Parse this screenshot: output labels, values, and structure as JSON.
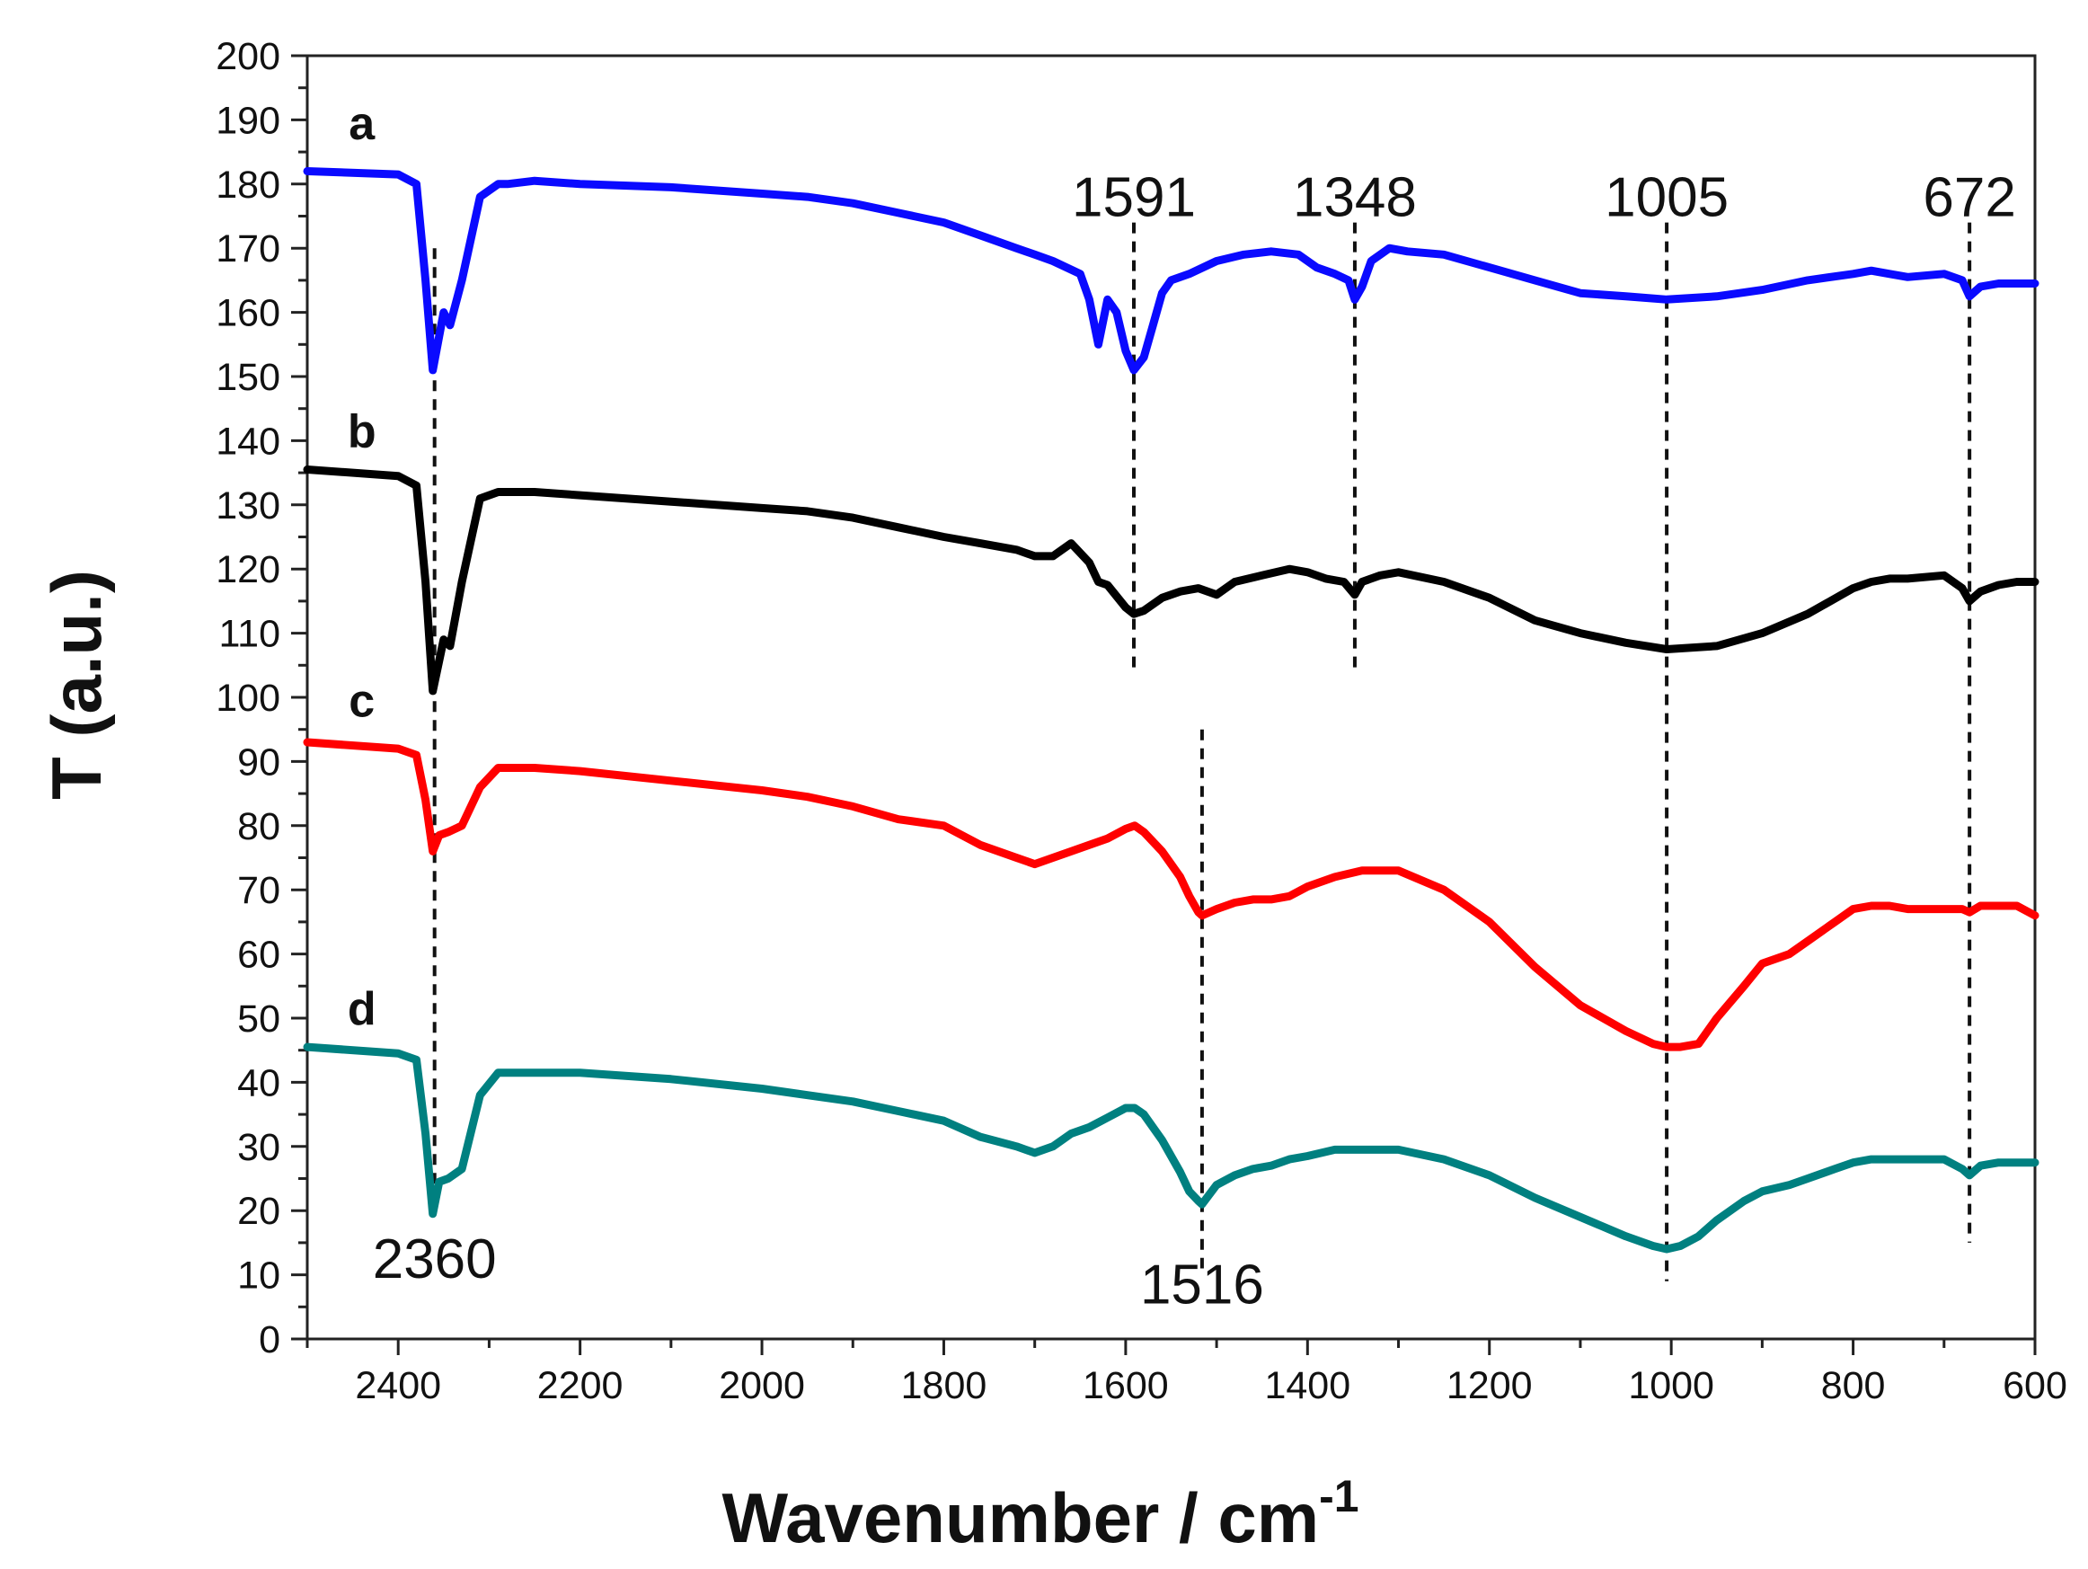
{
  "chart_data": {
    "type": "line",
    "title": "",
    "xlabel": "Wavenumber / cm",
    "xlabel_superscript": "-1",
    "ylabel": "T (a.u.)",
    "xlim": [
      2500,
      600
    ],
    "ylim": [
      0,
      200
    ],
    "x_ticks": [
      2400,
      2200,
      2000,
      1800,
      1600,
      1400,
      1200,
      1000,
      800,
      600
    ],
    "y_ticks": [
      0,
      10,
      20,
      30,
      40,
      50,
      60,
      70,
      80,
      90,
      100,
      110,
      120,
      130,
      140,
      150,
      160,
      170,
      180,
      190,
      200
    ],
    "series": [
      {
        "name": "a",
        "color": "#0a0aff",
        "x": [
          2500,
          2400,
          2380,
          2370,
          2362,
          2350,
          2343,
          2330,
          2310,
          2290,
          2280,
          2250,
          2200,
          2100,
          2000,
          1950,
          1900,
          1850,
          1800,
          1760,
          1720,
          1700,
          1680,
          1650,
          1640,
          1630,
          1620,
          1610,
          1600,
          1591,
          1580,
          1570,
          1560,
          1550,
          1530,
          1500,
          1470,
          1440,
          1410,
          1390,
          1370,
          1355,
          1348,
          1340,
          1330,
          1310,
          1290,
          1250,
          1200,
          1150,
          1100,
          1050,
          1005,
          950,
          900,
          850,
          800,
          780,
          760,
          740,
          700,
          680,
          672,
          660,
          640,
          620,
          600
        ],
        "y": [
          182,
          181.5,
          180,
          165,
          151,
          160,
          158,
          165,
          178,
          180,
          180,
          180.5,
          180,
          179.5,
          178.5,
          178,
          177,
          175.5,
          174,
          172,
          170,
          169,
          168,
          166,
          162,
          155,
          162,
          160,
          154,
          151,
          153,
          158,
          163,
          165,
          166,
          168,
          169,
          169.5,
          169,
          167,
          166,
          165,
          162,
          164,
          168,
          170,
          169.5,
          169,
          167,
          165,
          163,
          162.5,
          162,
          162.5,
          163.5,
          165,
          166,
          166.5,
          166,
          165.5,
          166,
          165,
          162.5,
          164,
          164.5,
          164.5,
          164.5
        ]
      },
      {
        "name": "b",
        "color": "#000000",
        "x": [
          2500,
          2400,
          2380,
          2370,
          2362,
          2350,
          2343,
          2330,
          2310,
          2290,
          2280,
          2250,
          2200,
          2100,
          2000,
          1950,
          1900,
          1850,
          1800,
          1760,
          1720,
          1700,
          1680,
          1660,
          1640,
          1630,
          1620,
          1600,
          1591,
          1580,
          1560,
          1540,
          1520,
          1500,
          1480,
          1450,
          1420,
          1400,
          1380,
          1360,
          1348,
          1340,
          1320,
          1300,
          1250,
          1200,
          1150,
          1100,
          1050,
          1005,
          950,
          900,
          850,
          800,
          780,
          760,
          740,
          700,
          680,
          672,
          660,
          640,
          620,
          600
        ],
        "y": [
          135.5,
          134.5,
          133,
          118,
          101,
          109,
          108,
          118,
          131,
          132,
          132,
          132,
          131.5,
          130.5,
          129.5,
          129,
          128,
          126.5,
          125,
          124,
          123,
          122,
          122,
          124,
          121,
          118,
          117.5,
          114,
          113,
          113.5,
          115.5,
          116.5,
          117,
          116,
          118,
          119,
          120,
          119.5,
          118.5,
          118,
          116,
          118,
          119,
          119.5,
          118,
          115.5,
          112,
          110,
          108.5,
          107.5,
          108,
          110,
          113,
          117,
          118,
          118.5,
          118.5,
          119,
          117,
          115,
          116.5,
          117.5,
          118,
          118
        ]
      },
      {
        "name": "c",
        "color": "#ff0000",
        "x": [
          2500,
          2400,
          2380,
          2370,
          2362,
          2355,
          2345,
          2330,
          2310,
          2290,
          2280,
          2250,
          2200,
          2100,
          2000,
          1950,
          1900,
          1850,
          1800,
          1760,
          1720,
          1700,
          1680,
          1660,
          1640,
          1620,
          1600,
          1590,
          1580,
          1560,
          1540,
          1530,
          1520,
          1516,
          1500,
          1480,
          1460,
          1440,
          1420,
          1400,
          1370,
          1340,
          1300,
          1250,
          1200,
          1150,
          1100,
          1050,
          1020,
          1005,
          990,
          970,
          950,
          920,
          900,
          870,
          850,
          820,
          800,
          780,
          760,
          740,
          700,
          680,
          672,
          660,
          640,
          620,
          600
        ],
        "y": [
          93,
          92,
          91,
          84,
          76,
          78.5,
          79,
          80,
          86,
          89,
          89,
          89,
          88.5,
          87,
          85.5,
          84.5,
          83,
          81,
          80,
          77,
          75,
          74,
          75,
          76,
          77,
          78,
          79.5,
          80,
          79,
          76,
          72,
          69,
          66.5,
          66,
          67,
          68,
          68.5,
          68.5,
          69,
          70.5,
          72,
          73,
          73,
          70,
          65,
          58,
          52,
          48,
          46,
          45.5,
          45.5,
          46,
          50,
          55,
          58.5,
          60,
          62,
          65,
          67,
          67.5,
          67.5,
          67,
          67,
          67,
          66.5,
          67.5,
          67.5,
          67.5,
          66
        ]
      },
      {
        "name": "d",
        "color": "#008080",
        "x": [
          2500,
          2400,
          2380,
          2370,
          2362,
          2355,
          2345,
          2330,
          2310,
          2290,
          2280,
          2250,
          2200,
          2100,
          2000,
          1950,
          1900,
          1850,
          1800,
          1760,
          1720,
          1700,
          1680,
          1660,
          1640,
          1620,
          1600,
          1590,
          1580,
          1560,
          1540,
          1530,
          1520,
          1516,
          1500,
          1480,
          1460,
          1440,
          1420,
          1400,
          1370,
          1340,
          1300,
          1250,
          1200,
          1150,
          1100,
          1050,
          1020,
          1005,
          990,
          970,
          950,
          920,
          900,
          870,
          850,
          820,
          800,
          780,
          760,
          740,
          700,
          680,
          672,
          660,
          640,
          620,
          600
        ],
        "y": [
          45.5,
          44.5,
          43.5,
          32,
          19.5,
          24.5,
          25,
          26.5,
          38,
          41.5,
          41.5,
          41.5,
          41.5,
          40.5,
          39,
          38,
          37,
          35.5,
          34,
          31.5,
          30,
          29,
          30,
          32,
          33,
          34.5,
          36,
          36,
          35,
          31,
          26,
          23,
          21.5,
          21,
          24,
          25.5,
          26.5,
          27,
          28,
          28.5,
          29.5,
          29.5,
          29.5,
          28,
          25.5,
          22,
          19,
          16,
          14.5,
          14,
          14.5,
          16,
          18.5,
          21.5,
          23,
          24,
          25,
          26.5,
          27.5,
          28,
          28,
          28,
          28,
          26.5,
          25.5,
          27,
          27.5,
          27.5,
          27.5
        ]
      }
    ],
    "series_labels": [
      {
        "text": "a",
        "x": 2440,
        "y": 187
      },
      {
        "text": "b",
        "x": 2440,
        "y": 139
      },
      {
        "text": "c",
        "x": 2440,
        "y": 97
      },
      {
        "text": "d",
        "x": 2440,
        "y": 49
      }
    ],
    "annotations": [
      {
        "text": "2360",
        "x": 2360,
        "label_y": 9.5,
        "line_from": 21,
        "line_to": 170,
        "label_anchor": "below"
      },
      {
        "text": "1591",
        "x": 1591,
        "label_y": 175,
        "line_from": 104,
        "line_to": 174,
        "label_anchor": "above"
      },
      {
        "text": "1348",
        "x": 1348,
        "label_y": 175,
        "line_from": 104,
        "line_to": 174,
        "label_anchor": "above"
      },
      {
        "text": "1516",
        "x": 1516,
        "label_y": 5.5,
        "line_from": 11,
        "line_to": 95,
        "label_anchor": "below"
      },
      {
        "text": "1005",
        "x": 1005,
        "label_y": 175,
        "line_from": 9,
        "line_to": 174,
        "label_anchor": "above"
      },
      {
        "text": "672",
        "x": 672,
        "label_y": 175,
        "line_from": 15,
        "line_to": 174,
        "label_anchor": "above"
      }
    ],
    "grid": false,
    "legend": "none"
  }
}
